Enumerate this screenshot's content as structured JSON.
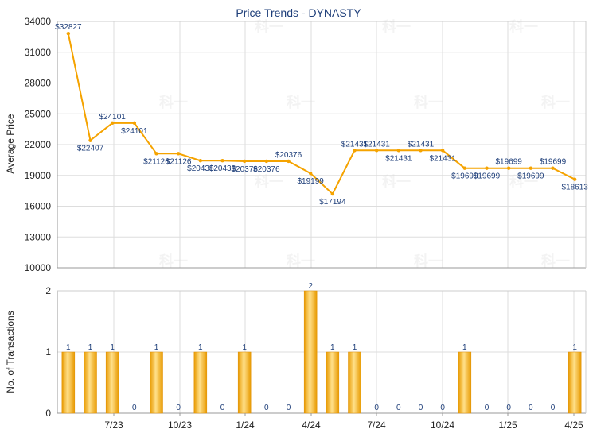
{
  "chart_data": [
    {
      "type": "line",
      "title": "Price Trends - DYNASTY",
      "xlabel": "",
      "ylabel": "Average Price",
      "ylim": [
        10000,
        34000
      ],
      "yticks": [
        10000,
        13000,
        16000,
        19000,
        22000,
        25000,
        28000,
        31000,
        34000
      ],
      "grid": true,
      "color": "#f5a300",
      "series": [
        {
          "values": [
            32827,
            22407,
            24101,
            24101,
            21126,
            21126,
            20438,
            20438,
            20376,
            20376,
            20376,
            19199,
            17194,
            21431,
            21431,
            21431,
            21431,
            21431,
            19699,
            19699,
            19699,
            19699,
            19699,
            18613
          ],
          "labels": [
            "$32827",
            "$22407",
            "$24101",
            "$24101",
            "$21126",
            "$21126",
            "$20438",
            "$20438",
            "$20376",
            "$20376",
            "$20376",
            "$19199",
            "$17194",
            "$21431",
            "$21431",
            "$21431",
            "$21431",
            "$21431",
            "$19699",
            "$19699",
            "$19699",
            "$19699",
            "$19699",
            "$18613"
          ]
        }
      ]
    },
    {
      "type": "bar",
      "xlabel": "",
      "ylabel": "No. of Transactions",
      "ylim": [
        0,
        2
      ],
      "yticks": [
        0,
        1,
        2
      ],
      "grid": true,
      "color": "#f5a300",
      "values": [
        1,
        1,
        1,
        0,
        1,
        0,
        1,
        0,
        1,
        0,
        0,
        2,
        1,
        1,
        0,
        0,
        0,
        0,
        1,
        0,
        0,
        0,
        0,
        1
      ],
      "xtick_labels": [
        "7/23",
        "10/23",
        "1/24",
        "4/24",
        "7/24",
        "10/24",
        "1/25",
        "4/25"
      ]
    }
  ],
  "watermark": "科一"
}
